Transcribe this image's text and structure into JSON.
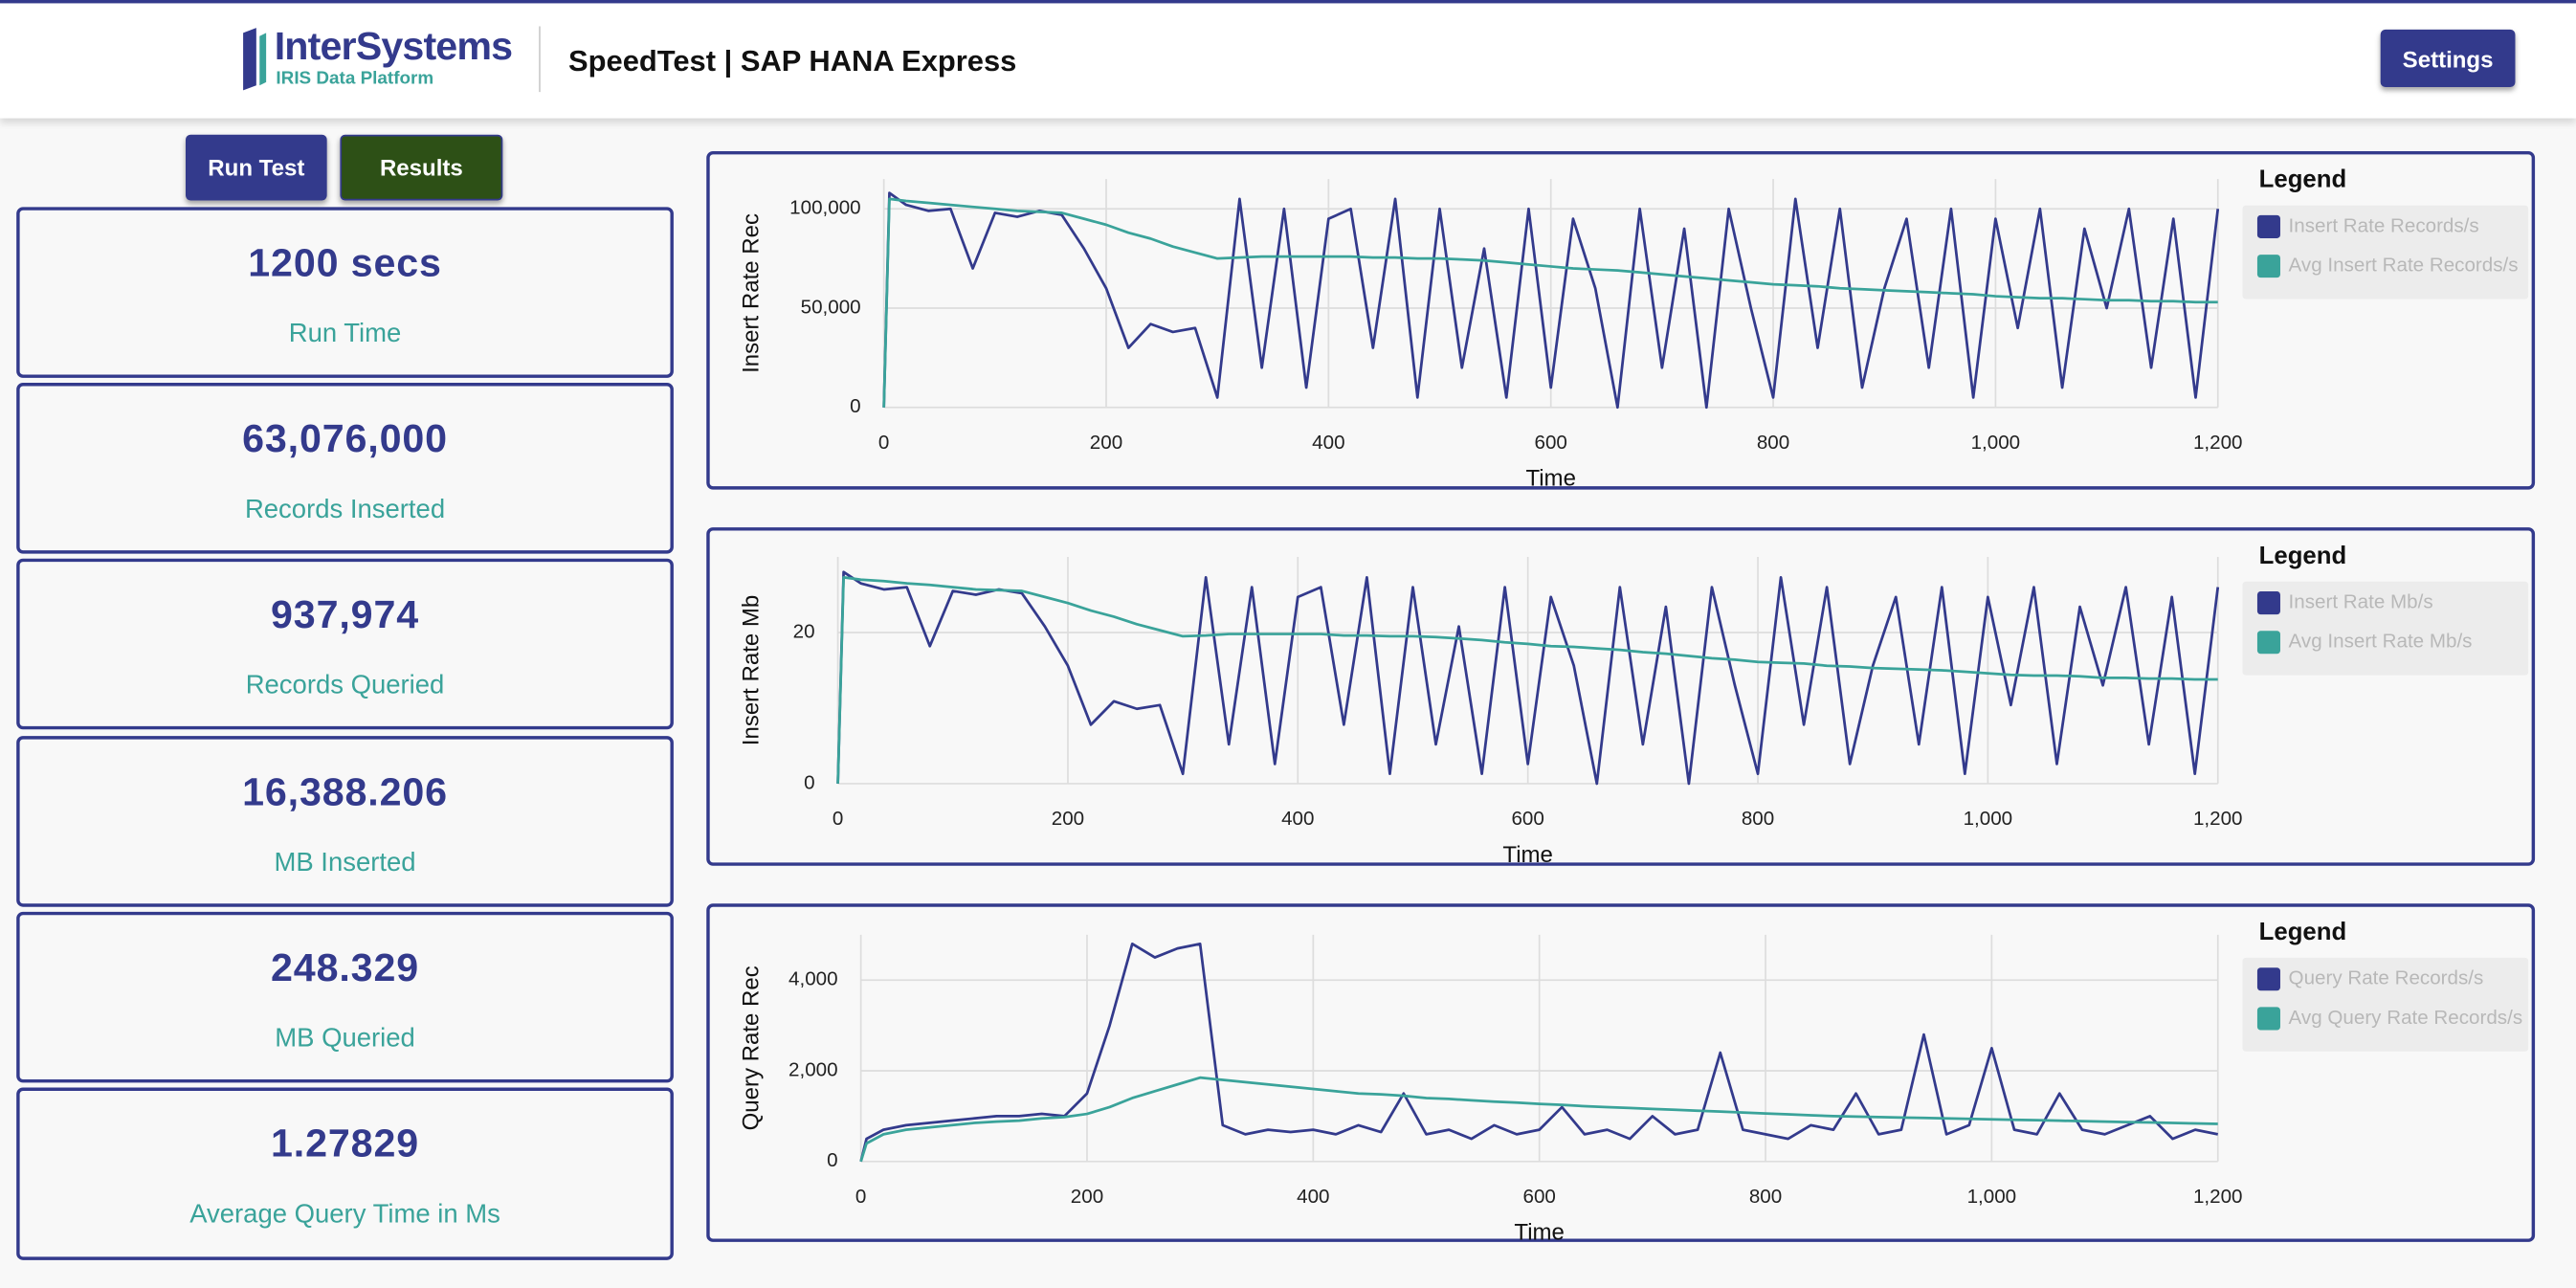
{
  "header": {
    "logo": "InterSystems",
    "logo_subtitle": "IRIS Data Platform",
    "title": "SpeedTest | SAP HANA Express",
    "settings": "Settings"
  },
  "buttons": [
    "Run Test",
    "Results"
  ],
  "stats": [
    {
      "value": "1200 secs",
      "label": "Run Time"
    },
    {
      "value": "63,076,000",
      "label": "Records Inserted"
    },
    {
      "value": "937,974",
      "label": "Records Queried"
    },
    {
      "value": "16,388.206",
      "label": "MB Inserted"
    },
    {
      "value": "248.329",
      "label": "MB Queried"
    },
    {
      "value": "1.27829",
      "label": "Average Query Time in Ms"
    }
  ],
  "chart_data": [
    {
      "type": "line",
      "ylabel": "Insert Rate Rec",
      "xlabel": "Time",
      "legend_title": "Legend",
      "grid": true,
      "xlim": [
        0,
        1200
      ],
      "xticks": [
        0,
        200,
        400,
        600,
        800,
        {
          "value": 1000,
          "label": "1,000"
        },
        {
          "value": 1200,
          "label": "1,200"
        }
      ],
      "ylim": [
        0,
        115000
      ],
      "yticks": [
        0,
        {
          "value": 50000,
          "label": "50,000"
        },
        {
          "value": 100000,
          "label": "100,000"
        }
      ],
      "x": [
        0,
        5,
        20,
        40,
        60,
        80,
        100,
        120,
        140,
        160,
        180,
        200,
        220,
        240,
        260,
        280,
        300,
        320,
        340,
        360,
        380,
        400,
        420,
        440,
        460,
        480,
        500,
        520,
        540,
        560,
        580,
        600,
        620,
        640,
        660,
        680,
        700,
        720,
        740,
        760,
        780,
        800,
        820,
        840,
        860,
        880,
        900,
        920,
        940,
        960,
        980,
        1000,
        1020,
        1040,
        1060,
        1080,
        1100,
        1120,
        1140,
        1160,
        1180,
        1200
      ],
      "series": [
        {
          "name": "Insert Rate Records/s",
          "color": "#333a8c",
          "values": [
            0,
            108000,
            102000,
            99000,
            100000,
            70000,
            98000,
            96000,
            99000,
            97000,
            80000,
            60000,
            30000,
            42000,
            38000,
            40000,
            5000,
            105000,
            20000,
            100000,
            10000,
            95000,
            100000,
            30000,
            105000,
            5000,
            100000,
            20000,
            80000,
            5000,
            100000,
            10000,
            95000,
            60000,
            0,
            100000,
            20000,
            90000,
            0,
            100000,
            50000,
            5000,
            105000,
            30000,
            100000,
            10000,
            60000,
            95000,
            20000,
            100000,
            5000,
            95000,
            40000,
            100000,
            10000,
            90000,
            50000,
            100000,
            20000,
            95000,
            5000,
            100000
          ]
        },
        {
          "name": "Avg Insert Rate Records/s",
          "color": "#3aa39a",
          "values": [
            0,
            105000,
            104000,
            103000,
            102000,
            101000,
            100000,
            99000,
            98500,
            98000,
            95000,
            92000,
            88000,
            85000,
            81000,
            78000,
            75000,
            75500,
            76000,
            76000,
            76000,
            76000,
            76000,
            75500,
            75500,
            75000,
            75000,
            74500,
            74000,
            73000,
            72000,
            71000,
            70000,
            69500,
            69000,
            68000,
            67000,
            66000,
            65000,
            64000,
            63000,
            62000,
            61500,
            61000,
            60000,
            59500,
            59000,
            58500,
            58000,
            57500,
            57000,
            56000,
            55500,
            55000,
            55000,
            54500,
            54000,
            54000,
            53500,
            53500,
            53000,
            53000
          ]
        }
      ]
    },
    {
      "type": "line",
      "ylabel": "Insert Rate Mb",
      "xlabel": "Time",
      "legend_title": "Legend",
      "grid": true,
      "xlim": [
        0,
        1200
      ],
      "xticks": [
        0,
        200,
        400,
        600,
        800,
        {
          "value": 1000,
          "label": "1,000"
        },
        {
          "value": 1200,
          "label": "1,200"
        }
      ],
      "ylim": [
        0,
        30
      ],
      "yticks": [
        0,
        20
      ],
      "x": [
        0,
        5,
        20,
        40,
        60,
        80,
        100,
        120,
        140,
        160,
        180,
        200,
        220,
        240,
        260,
        280,
        300,
        320,
        340,
        360,
        380,
        400,
        420,
        440,
        460,
        480,
        500,
        520,
        540,
        560,
        580,
        600,
        620,
        640,
        660,
        680,
        700,
        720,
        740,
        760,
        780,
        800,
        820,
        840,
        860,
        880,
        900,
        920,
        940,
        960,
        980,
        1000,
        1020,
        1040,
        1060,
        1080,
        1100,
        1120,
        1140,
        1160,
        1180,
        1200
      ],
      "series": [
        {
          "name": "Insert Rate Mb/s",
          "color": "#333a8c",
          "values": [
            0,
            28,
            26.5,
            25.7,
            26,
            18.2,
            25.5,
            25,
            25.7,
            25.2,
            20.8,
            15.6,
            7.8,
            10.9,
            9.9,
            10.4,
            1.3,
            27.3,
            5.2,
            26,
            2.6,
            24.7,
            26,
            7.8,
            27.3,
            1.3,
            26,
            5.2,
            20.8,
            1.3,
            26,
            2.6,
            24.7,
            15.6,
            0,
            26,
            5.2,
            23.4,
            0,
            26,
            13,
            1.3,
            27.3,
            7.8,
            26,
            2.6,
            15.6,
            24.7,
            5.2,
            26,
            1.3,
            24.7,
            10.4,
            26,
            2.6,
            23.4,
            13,
            26,
            5.2,
            24.7,
            1.3,
            26
          ]
        },
        {
          "name": "Avg Insert Rate Mb/s",
          "color": "#3aa39a",
          "values": [
            0,
            27.3,
            27,
            26.8,
            26.5,
            26.3,
            26,
            25.7,
            25.6,
            25.5,
            24.7,
            23.9,
            22.9,
            22.1,
            21.1,
            20.3,
            19.5,
            19.6,
            19.8,
            19.8,
            19.8,
            19.8,
            19.8,
            19.6,
            19.6,
            19.5,
            19.5,
            19.4,
            19.2,
            19,
            18.7,
            18.5,
            18.2,
            18.1,
            17.9,
            17.7,
            17.4,
            17.2,
            16.9,
            16.6,
            16.4,
            16.1,
            16,
            15.9,
            15.6,
            15.5,
            15.3,
            15.2,
            15.1,
            15,
            14.8,
            14.6,
            14.4,
            14.3,
            14.3,
            14.2,
            14,
            14,
            13.9,
            13.9,
            13.8,
            13.8
          ]
        }
      ]
    },
    {
      "type": "line",
      "ylabel": "Query Rate Rec",
      "xlabel": "Time",
      "legend_title": "Legend",
      "grid": true,
      "xlim": [
        0,
        1200
      ],
      "xticks": [
        0,
        200,
        400,
        600,
        800,
        {
          "value": 1000,
          "label": "1,000"
        },
        {
          "value": 1200,
          "label": "1,200"
        }
      ],
      "ylim": [
        0,
        5000
      ],
      "yticks": [
        0,
        {
          "value": 2000,
          "label": "2,000"
        },
        {
          "value": 4000,
          "label": "4,000"
        }
      ],
      "x": [
        0,
        5,
        20,
        40,
        60,
        80,
        100,
        120,
        140,
        160,
        180,
        200,
        220,
        240,
        260,
        280,
        300,
        320,
        340,
        360,
        380,
        400,
        420,
        440,
        460,
        480,
        500,
        520,
        540,
        560,
        580,
        600,
        620,
        640,
        660,
        680,
        700,
        720,
        740,
        760,
        780,
        800,
        820,
        840,
        860,
        880,
        900,
        920,
        940,
        960,
        980,
        1000,
        1020,
        1040,
        1060,
        1080,
        1100,
        1120,
        1140,
        1160,
        1180,
        1200
      ],
      "series": [
        {
          "name": "Query Rate Records/s",
          "color": "#333a8c",
          "values": [
            0,
            500,
            700,
            800,
            850,
            900,
            950,
            1000,
            1000,
            1050,
            1000,
            1500,
            3000,
            4800,
            4500,
            4700,
            4800,
            800,
            600,
            700,
            650,
            700,
            600,
            800,
            650,
            1500,
            600,
            700,
            500,
            800,
            600,
            700,
            1200,
            600,
            700,
            500,
            1000,
            600,
            700,
            2400,
            700,
            600,
            500,
            800,
            700,
            1500,
            600,
            700,
            2800,
            600,
            800,
            2500,
            700,
            600,
            1500,
            700,
            600,
            800,
            1000,
            500,
            700,
            600
          ]
        },
        {
          "name": "Avg Query Rate Records/s",
          "color": "#3aa39a",
          "values": [
            0,
            400,
            600,
            700,
            750,
            800,
            850,
            880,
            900,
            950,
            980,
            1050,
            1200,
            1400,
            1550,
            1700,
            1850,
            1800,
            1750,
            1700,
            1650,
            1600,
            1550,
            1500,
            1480,
            1450,
            1400,
            1380,
            1350,
            1320,
            1300,
            1270,
            1250,
            1220,
            1200,
            1180,
            1160,
            1140,
            1120,
            1100,
            1080,
            1060,
            1040,
            1020,
            1000,
            990,
            980,
            970,
            960,
            950,
            940,
            930,
            920,
            910,
            900,
            890,
            880,
            870,
            860,
            850,
            840,
            830
          ]
        }
      ]
    }
  ]
}
